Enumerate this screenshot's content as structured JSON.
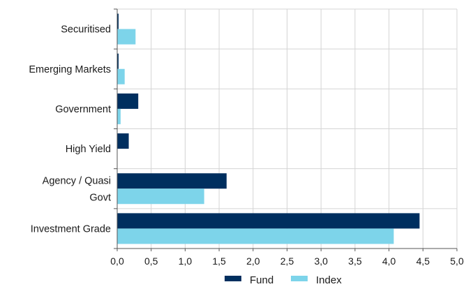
{
  "chart_data": {
    "type": "bar",
    "orientation": "horizontal",
    "categories": [
      [
        "Securitised"
      ],
      [
        "Emerging Markets"
      ],
      [
        "Government"
      ],
      [
        "High Yield"
      ],
      [
        "Agency / Quasi",
        "Govt"
      ],
      [
        "Investment Grade"
      ]
    ],
    "series": [
      {
        "name": "Fund",
        "color": "#002f5f",
        "values": [
          0.02,
          0.02,
          0.31,
          0.17,
          1.61,
          4.45
        ]
      },
      {
        "name": "Index",
        "color": "#7dd4ea",
        "values": [
          0.27,
          0.11,
          0.05,
          0.0,
          1.28,
          4.07
        ]
      }
    ],
    "x_ticks": [
      "0,0",
      "0,5",
      "1,0",
      "1,5",
      "2,0",
      "2,5",
      "3,0",
      "3,5",
      "4,0",
      "4,5",
      "5,0"
    ],
    "xlim": [
      0,
      5
    ],
    "grid": true,
    "legend_position": "bottom"
  }
}
